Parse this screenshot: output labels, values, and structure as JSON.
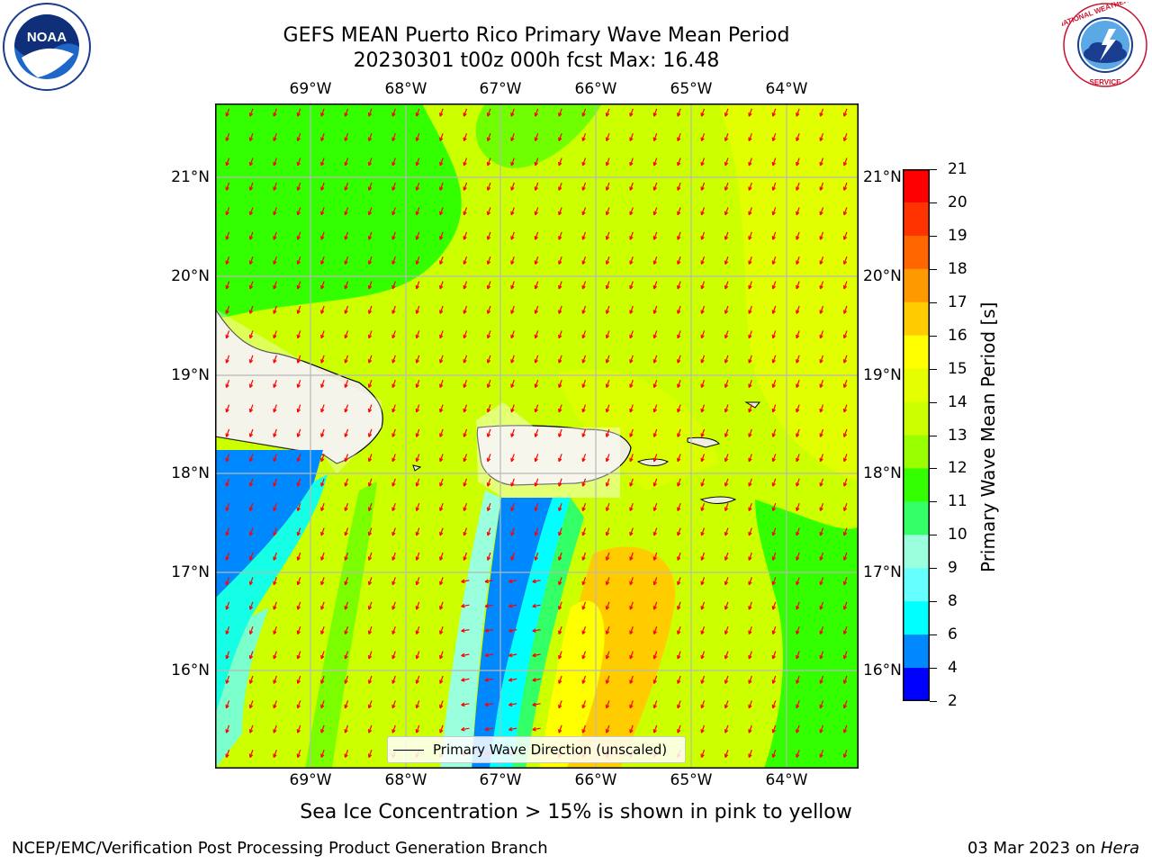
{
  "header": {
    "title_line1": "GEFS MEAN Puerto Rico Primary Wave Mean Period",
    "title_line2": "20230301 t00z 000h fcst   Max: 16.48"
  },
  "logos": {
    "left": {
      "text": "NOAA",
      "ring_text": "NATIONAL OCEANIC AND ATMOSPHERIC ADMINISTRATION · U.S. DEPARTMENT OF COMMERCE"
    },
    "right": {
      "ring_text": "NATIONAL WEATHER SERVICE"
    }
  },
  "map": {
    "lon_ticks": [
      "69°W",
      "68°W",
      "67°W",
      "66°W",
      "65°W",
      "64°W"
    ],
    "lat_ticks": [
      "21°N",
      "20°N",
      "19°N",
      "18°N",
      "17°N",
      "16°N"
    ],
    "legend_label": "Primary Wave Direction (unscaled)"
  },
  "colorbar": {
    "label": "Primary Wave Mean Period [s]",
    "ticks": [
      "21",
      "20",
      "19",
      "18",
      "17",
      "16",
      "15",
      "14",
      "13",
      "12",
      "11",
      "10",
      "9",
      "8",
      "6",
      "4",
      "2"
    ],
    "colors": [
      "#ff0000",
      "#ff3300",
      "#ff6600",
      "#ff9900",
      "#ffcc00",
      "#ffff00",
      "#e6ff00",
      "#ccff00",
      "#99ff00",
      "#33ff00",
      "#33ff66",
      "#99ffdd",
      "#66ffff",
      "#00ffff",
      "#0088ff",
      "#0000ff"
    ]
  },
  "notes": {
    "sea_ice": "Sea Ice Concentration > 15% is shown in pink to yellow"
  },
  "footer": {
    "left": "NCEP/EMC/Verification Post Processing Product Generation Branch",
    "right_prefix": "03 Mar 2023 on ",
    "right_machine": "Hera"
  }
}
